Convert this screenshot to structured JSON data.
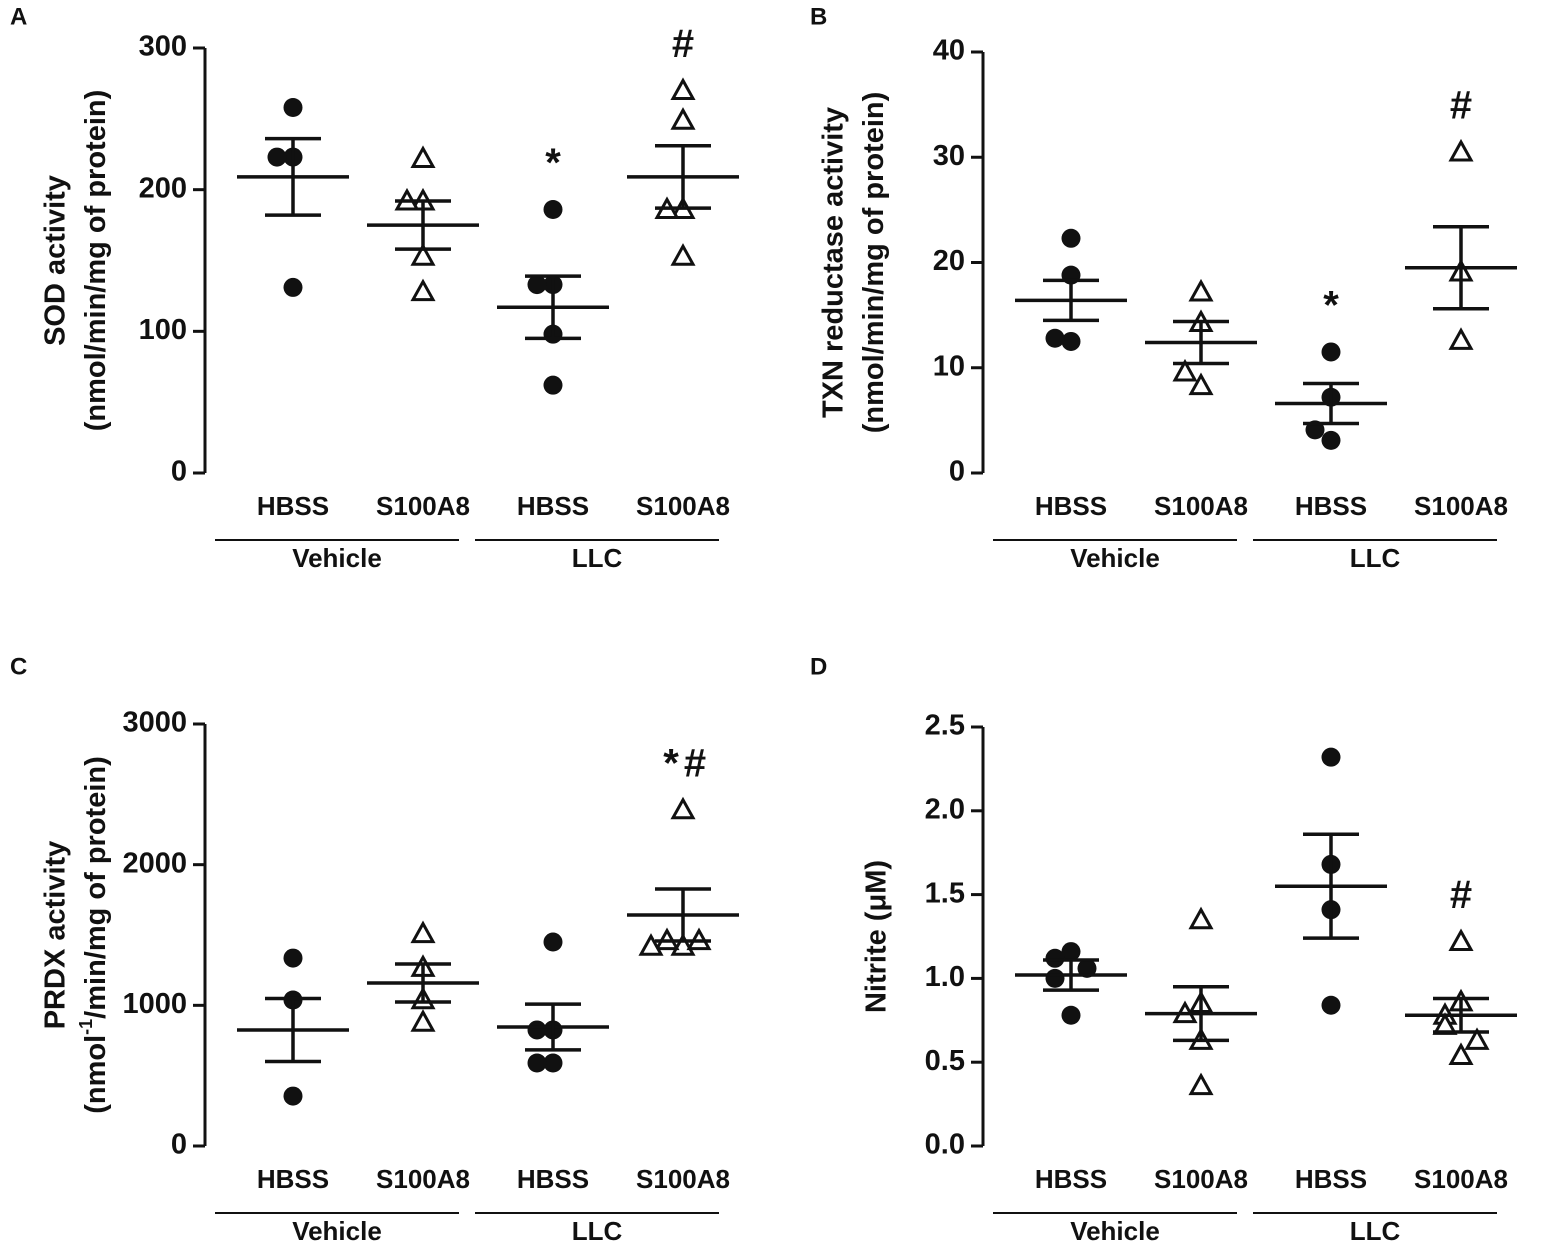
{
  "chart_data": [
    {
      "type": "scatter",
      "panel": "A",
      "ylabel": [
        "SOD activity",
        "(nmol/min/mg of protein)"
      ],
      "ylim": [
        0,
        300
      ],
      "yticks": [
        0,
        100,
        200,
        300
      ],
      "categories": [
        "HBSS",
        "S100A8",
        "HBSS",
        "S100A8"
      ],
      "groups": [
        "Vehicle",
        "LLC"
      ],
      "markers": [
        "circle",
        "triangle",
        "circle",
        "triangle"
      ],
      "data": [
        {
          "points": [
            258,
            223,
            223,
            131
          ],
          "mean": 209,
          "sem": 27
        },
        {
          "points": [
            222,
            192,
            192,
            153,
            128
          ],
          "mean": 175,
          "sem": 17
        },
        {
          "points": [
            186,
            133,
            133,
            98,
            62
          ],
          "mean": 117,
          "sem": 22,
          "annotation": [
            "*"
          ]
        },
        {
          "points": [
            270,
            249,
            186,
            186,
            153
          ],
          "mean": 209,
          "sem": 22,
          "annotation": [
            "#"
          ]
        }
      ]
    },
    {
      "type": "scatter",
      "panel": "B",
      "ylabel": [
        "TXN reductase activity",
        "(nmol/min/mg of protein)"
      ],
      "ylim": [
        0,
        40
      ],
      "yticks": [
        0,
        10,
        20,
        30,
        40
      ],
      "categories": [
        "HBSS",
        "S100A8",
        "HBSS",
        "S100A8"
      ],
      "groups": [
        "Vehicle",
        "LLC"
      ],
      "markers": [
        "circle",
        "triangle",
        "circle",
        "triangle"
      ],
      "data": [
        {
          "points": [
            22.3,
            18.8,
            12.5,
            12.8
          ],
          "mean": 16.4,
          "sem": 1.9
        },
        {
          "points": [
            17.2,
            14.3,
            8.3,
            9.6
          ],
          "mean": 12.4,
          "sem": 2.0
        },
        {
          "points": [
            11.5,
            7.2,
            3.1,
            4.1
          ],
          "mean": 6.6,
          "sem": 1.9,
          "annotation": [
            "*"
          ]
        },
        {
          "points": [
            30.5,
            19.1,
            12.6
          ],
          "mean": 19.5,
          "sem": 3.9,
          "annotation": [
            "#"
          ]
        }
      ]
    },
    {
      "type": "scatter",
      "panel": "C",
      "ylabel": [
        "PRDX activity",
        "(nmol",
        "-1",
        "/min/mg of protein)"
      ],
      "ylim": [
        0,
        3000
      ],
      "yticks": [
        0,
        1000,
        2000,
        3000
      ],
      "categories": [
        "HBSS",
        "S100A8",
        "HBSS",
        "S100A8"
      ],
      "groups": [
        "Vehicle",
        "LLC"
      ],
      "markers": [
        "circle",
        "triangle",
        "circle",
        "triangle"
      ],
      "data": [
        {
          "points": [
            1336,
            1038,
            355
          ],
          "mean": 825,
          "sem": 224
        },
        {
          "points": [
            1510,
            1270,
            1040,
            880
          ],
          "mean": 1159,
          "sem": 135
        },
        {
          "points": [
            1450,
            825,
            825,
            590,
            590
          ],
          "mean": 846,
          "sem": 163
        },
        {
          "points": [
            2390,
            1420,
            1460,
            1460,
            1420
          ],
          "mean": 1642,
          "sem": 185,
          "annotation": [
            "*",
            "#"
          ]
        }
      ]
    },
    {
      "type": "scatter",
      "panel": "D",
      "ylabel": [
        "Nitrite (μM)"
      ],
      "ylim": [
        0,
        2.5
      ],
      "yticks": [
        {
          "value": 0,
          "label": "0.0"
        },
        0.5,
        {
          "value": 1,
          "label": "1.0"
        },
        1.5,
        {
          "value": 2,
          "label": "2.0"
        },
        2.5
      ],
      "categories": [
        "HBSS",
        "S100A8",
        "HBSS",
        "S100A8"
      ],
      "groups": [
        "Vehicle",
        "LLC"
      ],
      "markers": [
        "circle",
        "triangle",
        "circle",
        "triangle"
      ],
      "data": [
        {
          "points": [
            1.16,
            1.12,
            1.06,
            1.0,
            0.78
          ],
          "mean": 1.02,
          "sem": 0.09
        },
        {
          "points": [
            1.35,
            0.85,
            0.79,
            0.63,
            0.36
          ],
          "mean": 0.79,
          "sem": 0.16
        },
        {
          "points": [
            2.32,
            1.68,
            1.41,
            0.84
          ],
          "mean": 1.55,
          "sem": 0.31
        },
        {
          "points": [
            1.22,
            0.86,
            0.78,
            0.72,
            0.54,
            0.63
          ],
          "mean": 0.78,
          "sem": 0.1,
          "annotation": [
            "#"
          ]
        }
      ]
    }
  ]
}
